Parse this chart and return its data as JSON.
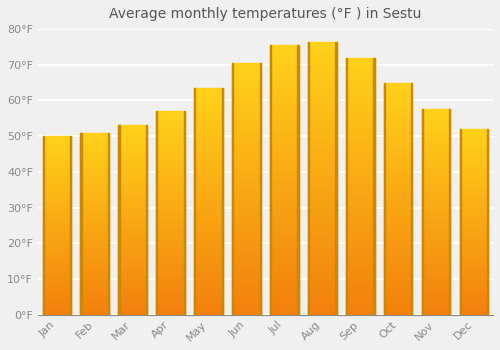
{
  "months": [
    "Jan",
    "Feb",
    "Mar",
    "Apr",
    "May",
    "Jun",
    "Jul",
    "Aug",
    "Sep",
    "Oct",
    "Nov",
    "Dec"
  ],
  "values": [
    50.0,
    51.0,
    53.0,
    57.0,
    63.5,
    70.5,
    75.5,
    76.5,
    72.0,
    65.0,
    57.5,
    52.0
  ],
  "bar_color_main": "#FFA500",
  "bar_color_top": "#FFD000",
  "bar_color_bottom": "#F08000",
  "bar_edge_color": "#CC8800",
  "title": "Average monthly temperatures (°F ) in Sestu",
  "ylim": [
    0,
    80
  ],
  "yticks": [
    0,
    10,
    20,
    30,
    40,
    50,
    60,
    70,
    80
  ],
  "ytick_labels": [
    "0°F",
    "10°F",
    "20°F",
    "30°F",
    "40°F",
    "50°F",
    "60°F",
    "70°F",
    "80°F"
  ],
  "background_color": "#f0f0f0",
  "plot_bg_color": "#f0f0f0",
  "grid_color": "#ffffff",
  "title_fontsize": 10,
  "tick_fontsize": 8,
  "tick_color": "#888888",
  "title_color": "#555555"
}
